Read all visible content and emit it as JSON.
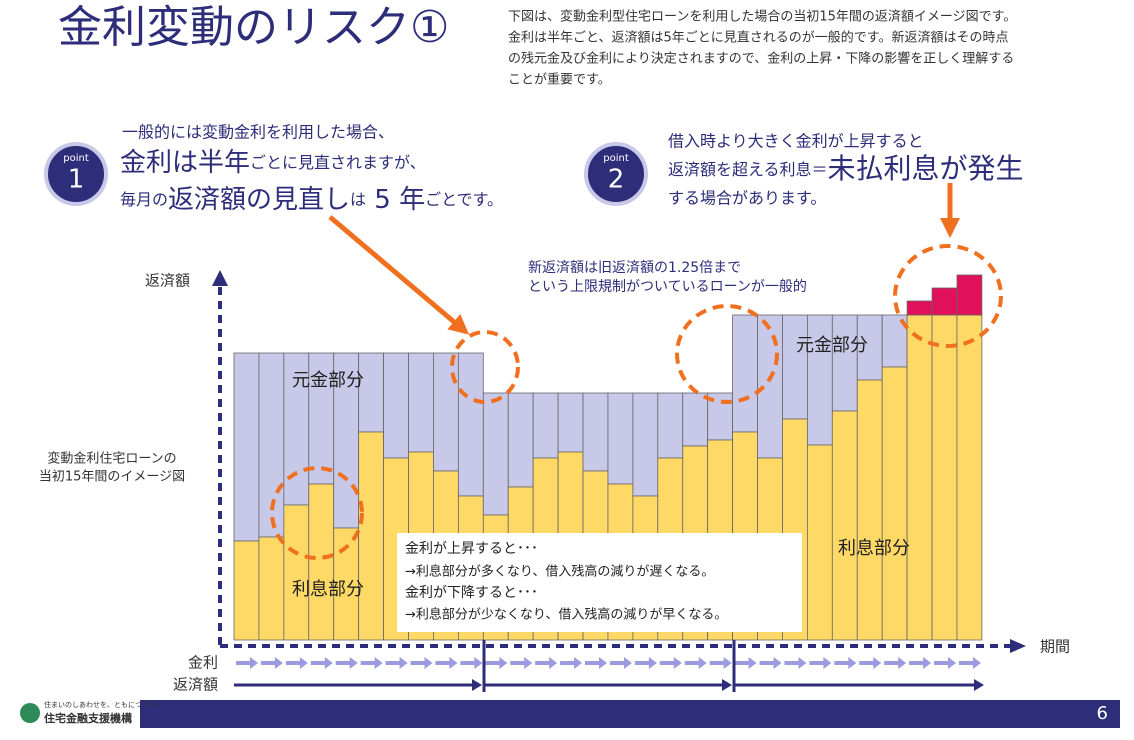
{
  "title": "金利変動のリスク①",
  "description": [
    "下図は、変動金利型住宅ローンを利用した場合の当初15年間の返済額イメージ図です。",
    "金利は半年ごと、返済額は5年ごとに見直されるのが一般的です。新返済額はその時点",
    "の残元金及び金利により決定されますので、金利の上昇・下降の影響を正しく理解する",
    "ことが重要です。"
  ],
  "point1": {
    "badge": "point",
    "number": "1",
    "line1": "一般的には変動金利を利用した場合、",
    "line2": [
      "金利は半年",
      "ごとに見直されますが、"
    ],
    "line3": [
      "毎月の",
      "返済額の見直し",
      "は",
      " 5 年",
      "ごとです。"
    ]
  },
  "point2": {
    "badge": "point",
    "number": "2",
    "line1": "借入時より大きく金利が上昇すると",
    "line2": [
      "返済額を超える利息＝",
      "未払利息が発生"
    ],
    "line3": "する場合があります。"
  },
  "cap_note": [
    "新返済額は旧返済額の1.25倍まで",
    "という上限規制がついているローンが一般的"
  ],
  "y_axis_label": "返済額",
  "x_axis_label": "期間",
  "side_label": [
    "変動金利住宅ローンの",
    "当初15年間のイメージ図"
  ],
  "principal_labels": [
    "元金部分",
    "元金部分"
  ],
  "interest_labels": [
    "利息部分",
    "利息部分"
  ],
  "explanation": [
    "金利が上昇すると･･･",
    "→利息部分が多くなり、借入残高の減りが遅くなる。",
    "金利が下降すると･･･",
    "→利息部分が少なくなり、借入残高の減りが早くなる。"
  ],
  "row_labels": [
    "金利",
    "返済額"
  ],
  "footer": {
    "tagline": "住まいのしあわせを、ともにつくる。",
    "org": "住宅金融支援機構",
    "page": "6"
  }
}
